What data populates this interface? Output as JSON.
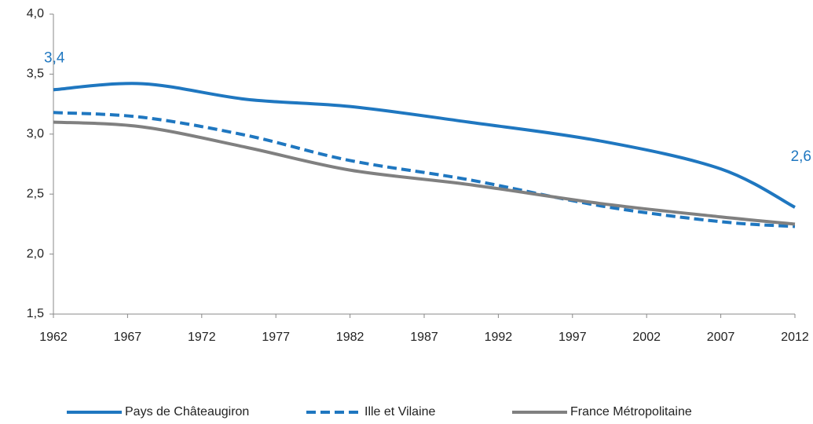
{
  "chart_data": {
    "type": "line",
    "x": [
      1962,
      1968,
      1975,
      1982,
      1990,
      1999,
      2007,
      2012
    ],
    "series": [
      {
        "name": "Pays de Châteaugiron",
        "color": "#1f77c0",
        "dash": "solid",
        "values": [
          3.37,
          3.42,
          3.29,
          3.23,
          3.1,
          2.94,
          2.71,
          2.39
        ]
      },
      {
        "name": "Ille et Vilaine",
        "color": "#1f77c0",
        "dash": "dashed",
        "values": [
          3.18,
          3.14,
          2.99,
          2.78,
          2.62,
          2.4,
          2.27,
          2.23
        ]
      },
      {
        "name": "France Métropolitaine",
        "color": "#808080",
        "dash": "solid",
        "values": [
          3.1,
          3.06,
          2.89,
          2.7,
          2.58,
          2.42,
          2.31,
          2.25
        ]
      }
    ],
    "annotations": [
      "3,4",
      "2,6"
    ],
    "xlim": [
      1962,
      2012
    ],
    "xticks": [
      1962,
      1967,
      1972,
      1977,
      1982,
      1987,
      1992,
      1997,
      2002,
      2007,
      2012
    ],
    "ylim": [
      1.5,
      4.0
    ],
    "yticks": [
      {
        "value": 1.5,
        "label": "1,5"
      },
      {
        "value": 2.0,
        "label": "2,0"
      },
      {
        "value": 2.5,
        "label": "2,5"
      },
      {
        "value": 3.0,
        "label": "3,0"
      },
      {
        "value": 3.5,
        "label": "3,5"
      },
      {
        "value": 4.0,
        "label": "4,0"
      }
    ],
    "legend": "bottom"
  }
}
